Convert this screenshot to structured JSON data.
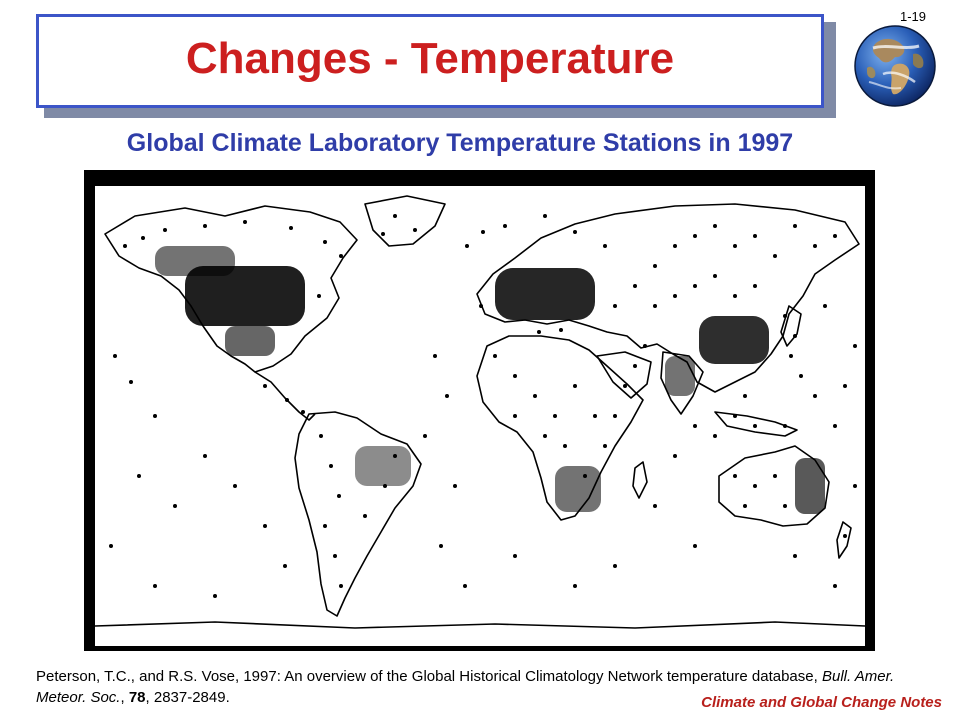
{
  "slide": {
    "number": "1-19",
    "title": "Changes - Temperature",
    "subtitle": "Global Climate Laboratory Temperature Stations in 1997",
    "footer": "Climate and Global Change Notes"
  },
  "citation": {
    "authors": "Peterson, T.C., and R.S. Vose, 1997: An overview of the Global Historical Climatology Network temperature database, ",
    "journal": "Bull. Amer. Meteor. Soc.",
    "sep1": ", ",
    "volume": "78",
    "pages": ", 2837-2849."
  },
  "colors": {
    "title": "#cc1f1f",
    "subtitle": "#2f3da8",
    "title_border": "#3c55c8",
    "footer": "#b8201c"
  },
  "icons": {
    "logo": "earth-globe-icon"
  }
}
